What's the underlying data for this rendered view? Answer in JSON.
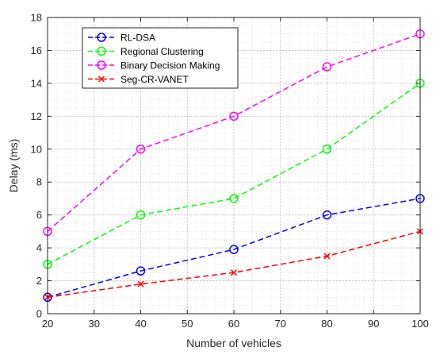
{
  "chart_data": {
    "type": "line",
    "title": "",
    "xlabel": "Number of vehicles",
    "ylabel": "Delay (ms)",
    "x": [
      20,
      40,
      60,
      80,
      100
    ],
    "xlim": [
      20,
      100
    ],
    "ylim": [
      0,
      18
    ],
    "xticks": [
      20,
      30,
      40,
      50,
      60,
      70,
      80,
      90,
      100
    ],
    "yticks": [
      0,
      2,
      4,
      6,
      8,
      10,
      12,
      14,
      16,
      18
    ],
    "grid": true,
    "minor_grid": true,
    "legend_position": "top-left",
    "series": [
      {
        "name": "RL-DSA",
        "values": [
          1.0,
          2.6,
          3.9,
          6.0,
          7.0
        ],
        "color": "#0000ff",
        "line_style": "dashed",
        "marker": "circle"
      },
      {
        "name": "Regional Clustering",
        "values": [
          3.0,
          6.0,
          7.0,
          10.0,
          14.0
        ],
        "color": "#00ff00",
        "line_style": "dashed",
        "marker": "circle"
      },
      {
        "name": "Binary Decision Making",
        "values": [
          5.0,
          10.0,
          12.0,
          15.0,
          17.0
        ],
        "color": "#ff00ff",
        "line_style": "dashed",
        "marker": "circle"
      },
      {
        "name": "Seg-CR-VANET",
        "values": [
          1.0,
          1.8,
          2.5,
          3.5,
          5.0
        ],
        "color": "#ff0000",
        "line_style": "dashed",
        "marker": "x"
      }
    ]
  }
}
